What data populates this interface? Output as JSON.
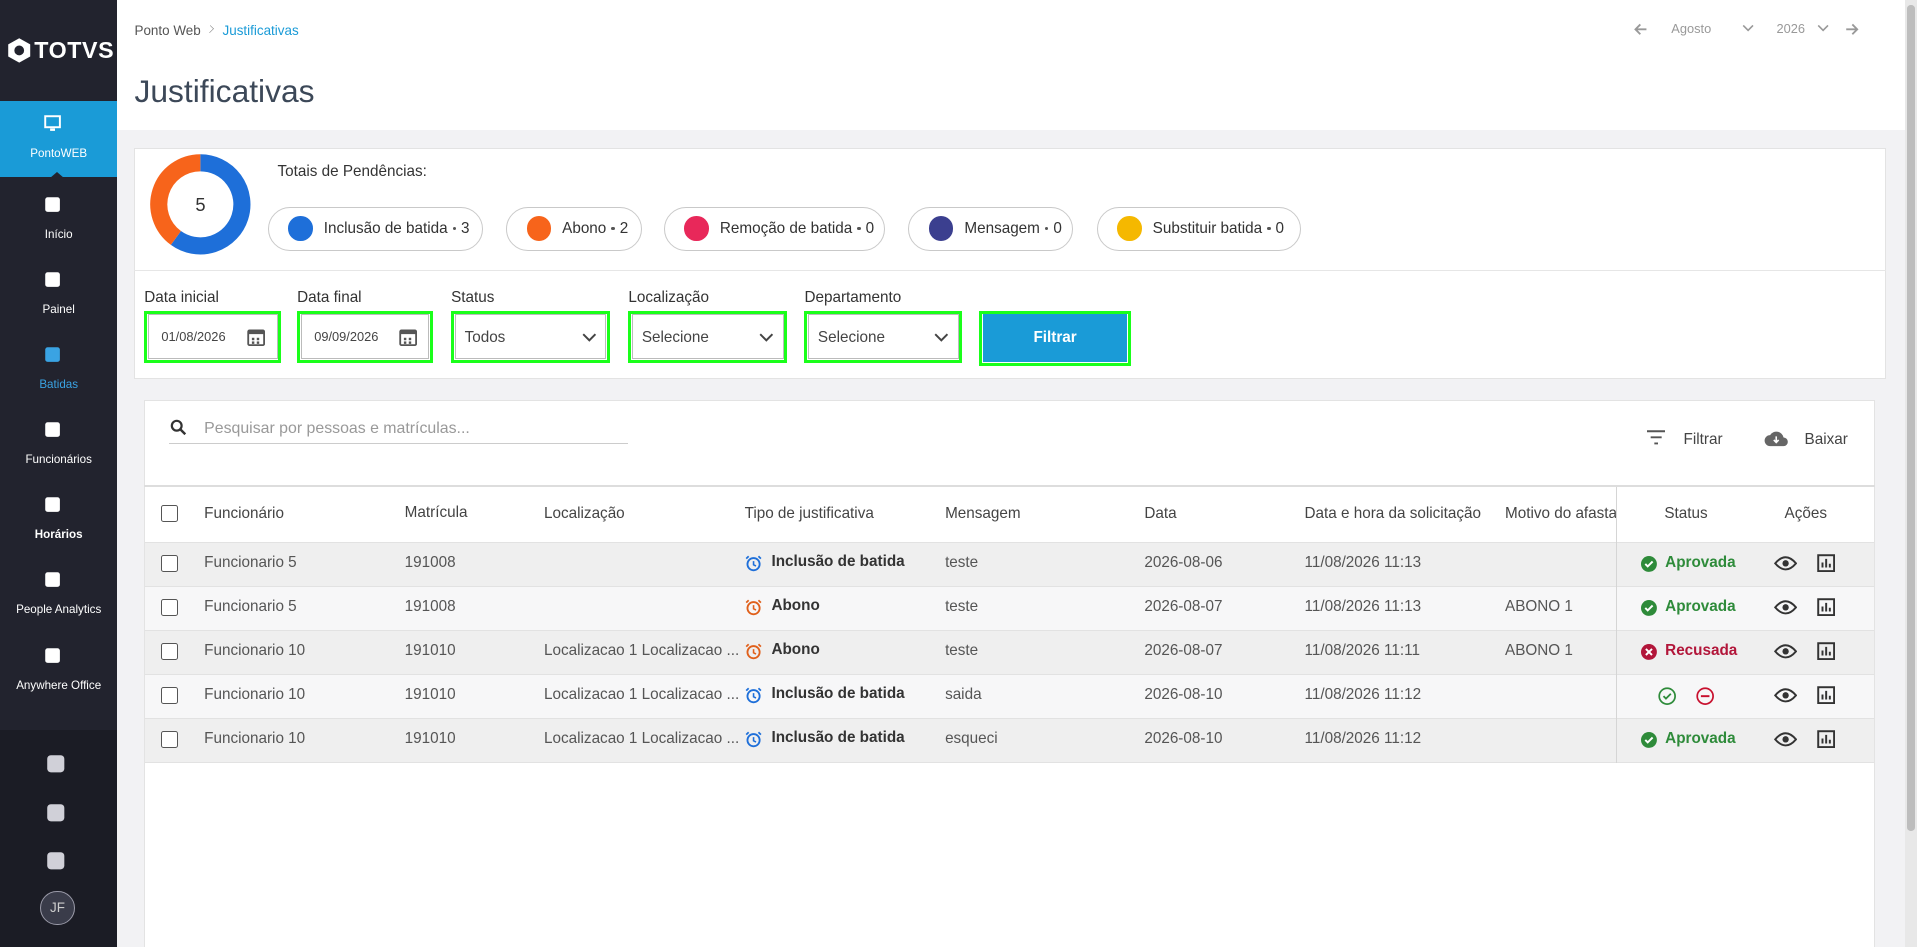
{
  "sidebar": {
    "logo": "TOTVS",
    "items": [
      "PontoWEB",
      "Início",
      "Painel",
      "Batidas",
      "Funcionários",
      "Horários",
      "People Analytics",
      "Anywhere Office"
    ],
    "avatar": "JF"
  },
  "breadcrumb": [
    "Ponto Web",
    "Justificativas"
  ],
  "period": {
    "month": "Agosto",
    "year": "2026"
  },
  "title": "Justificativas",
  "summary": {
    "label": "Totais de Pendências:",
    "total": 5,
    "chips": [
      {
        "label": "Inclusão de batida",
        "count": 3,
        "color": "#1e6fd9"
      },
      {
        "label": "Abono",
        "count": 2,
        "color": "#f7641b"
      },
      {
        "label": "Remoção de batida",
        "count": 0,
        "color": "#e8285a"
      },
      {
        "label": "Mensagem",
        "count": 0,
        "color": "#3b3f8f"
      },
      {
        "label": "Substituir batida",
        "count": 0,
        "color": "#f5b800"
      }
    ]
  },
  "filters": [
    {
      "label": "Data inicial",
      "value": "01/08/2026"
    },
    {
      "label": "Data final",
      "value": "09/09/2026"
    },
    {
      "label": "Status",
      "value": "Todos"
    },
    {
      "label": "Localização",
      "value": "Selecione"
    },
    {
      "label": "Departamento",
      "value": "Selecione"
    }
  ],
  "filter_button": "Filtrar",
  "search_placeholder": "Pesquisar por pessoas e matrículas...",
  "toolbar": [
    "Filtrar",
    "Baixar"
  ],
  "table": {
    "columns": [
      "Funcionário",
      "Matrícula",
      "Localização",
      "Tipo de justificativa",
      "Mensagem",
      "Data",
      "Data e hora da solicitação",
      "Motivo do afasta",
      "Status",
      "Ações"
    ],
    "rows": [
      [
        "Funcionario 5",
        "191008",
        null,
        "Inclusão de batida",
        "teste",
        "2026-08-06",
        "11/08/2026 11:13",
        null,
        "Aprovada"
      ],
      [
        "Funcionario 5",
        "191008",
        null,
        "Abono",
        "teste",
        "2026-08-07",
        "11/08/2026 11:13",
        "ABONO 1",
        "Aprovada"
      ],
      [
        "Funcionario 10",
        "191010",
        "Localizacao 1 Localizacao ...",
        "Abono",
        "teste",
        "2026-08-07",
        "11/08/2026 11:11",
        "ABONO 1",
        "Recusada"
      ],
      [
        "Funcionario 10",
        "191010",
        "Localizacao 1 Localizacao ...",
        "Inclusão de batida",
        "saida",
        "2026-08-10",
        "11/08/2026 11:12",
        null,
        null
      ],
      [
        "Funcionario 10",
        "191010",
        "Localizacao 1 Localizacao ...",
        "Inclusão de batida",
        "esqueci",
        "2026-08-10",
        "11/08/2026 11:12",
        null,
        "Aprovada"
      ]
    ]
  }
}
